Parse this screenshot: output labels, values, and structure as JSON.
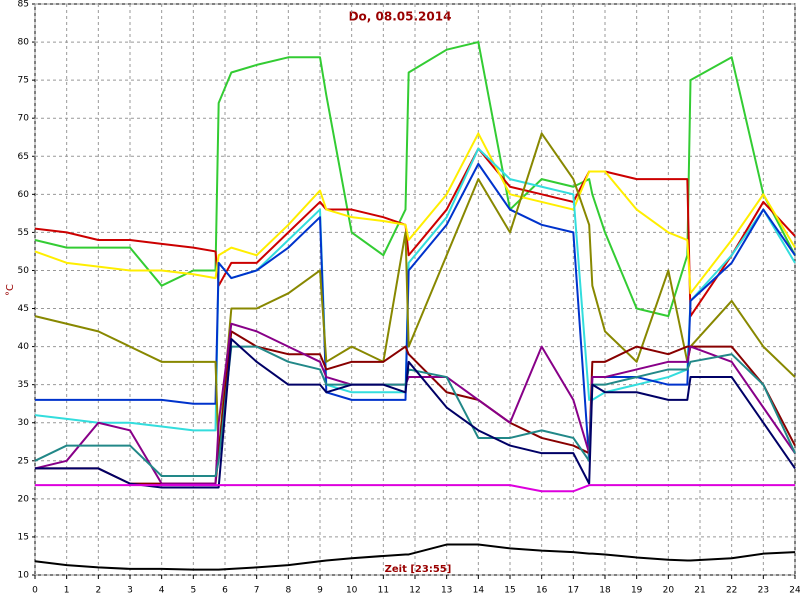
{
  "chart_data": {
    "type": "line",
    "title": "Do, 08.05.2014",
    "ylabel": "°C",
    "xlabel": "Zeit [23:55]",
    "x": [
      0,
      1,
      2,
      3,
      4,
      5,
      5.7,
      5.8,
      6.2,
      7,
      8,
      9,
      9.2,
      10,
      11,
      11.7,
      11.8,
      13,
      14,
      15,
      16,
      17,
      17.5,
      17.6,
      18,
      19,
      20,
      20.6,
      20.7,
      22,
      23,
      24
    ],
    "xlim": [
      0,
      24
    ],
    "xticks": [
      0,
      1,
      2,
      3,
      4,
      5,
      6,
      7,
      8,
      9,
      10,
      11,
      12,
      13,
      14,
      15,
      16,
      17,
      18,
      19,
      20,
      21,
      22,
      23,
      24
    ],
    "ylim": [
      10,
      85
    ],
    "yticks": [
      10,
      15,
      20,
      25,
      30,
      35,
      40,
      45,
      50,
      55,
      60,
      65,
      70,
      75,
      80,
      85
    ],
    "grid": true,
    "series": [
      {
        "color": "#33cc33",
        "values": [
          54,
          53,
          53,
          53,
          48,
          50,
          50,
          72,
          76,
          77,
          78,
          78,
          73,
          55,
          52,
          58,
          76,
          79,
          80,
          58,
          62,
          61,
          62,
          60,
          55,
          45,
          44,
          52,
          75,
          78,
          60,
          52
        ]
      },
      {
        "color": "#cc0000",
        "values": [
          55.5,
          55,
          54,
          54,
          53.5,
          53,
          52.5,
          48,
          51,
          51,
          55,
          59,
          58,
          58,
          57,
          56,
          52,
          58,
          66,
          61,
          60,
          59,
          63,
          63,
          63,
          62,
          62,
          62,
          44,
          52,
          59,
          54.5
        ]
      },
      {
        "color": "#ffee00",
        "values": [
          52.5,
          51,
          50.5,
          50,
          50,
          49.5,
          49,
          52,
          53,
          52,
          56,
          60.5,
          58,
          57,
          56.5,
          56,
          54,
          60,
          68,
          60,
          59,
          58,
          63,
          63,
          63,
          58,
          55,
          54,
          47,
          54,
          60,
          53
        ]
      },
      {
        "color": "#33dddd",
        "values": [
          31,
          30.5,
          30,
          30,
          29.5,
          29,
          29,
          51,
          49,
          50,
          54,
          58,
          35,
          34,
          34,
          34,
          51,
          57,
          66,
          62,
          61,
          60,
          33,
          33,
          34,
          35,
          36,
          37,
          46,
          52,
          58,
          51
        ]
      },
      {
        "color": "#0033cc",
        "values": [
          33,
          33,
          33,
          33,
          33,
          32.5,
          32.5,
          51,
          49,
          50,
          53,
          57,
          34,
          33,
          33,
          33,
          50,
          56,
          64,
          58,
          56,
          55,
          25,
          36,
          36,
          36,
          35,
          35,
          46,
          51,
          58,
          52
        ]
      },
      {
        "color": "#888800",
        "values": [
          44,
          43,
          42,
          40,
          38,
          38,
          38,
          26,
          45,
          45,
          47,
          50,
          38,
          40,
          38,
          55,
          40,
          52,
          62,
          55,
          68,
          62,
          56,
          48,
          42,
          38,
          50,
          38,
          40,
          46,
          40,
          36
        ]
      },
      {
        "color": "#880000",
        "values": [
          24,
          24,
          24,
          22,
          22,
          22,
          22,
          26,
          42,
          40,
          39,
          39,
          37,
          38,
          38,
          40,
          39,
          34,
          33,
          30,
          28,
          27,
          26,
          38,
          38,
          40,
          39,
          40,
          40,
          40,
          35,
          27
        ]
      },
      {
        "color": "#880088",
        "values": [
          24,
          25,
          30,
          29,
          22,
          22,
          22,
          30,
          43,
          42,
          40,
          38,
          36,
          35,
          35,
          35,
          36,
          36,
          33,
          30,
          40,
          33,
          26,
          36,
          36,
          37,
          38,
          38,
          40,
          38,
          32,
          26
        ]
      },
      {
        "color": "#228888",
        "values": [
          25,
          27,
          27,
          27,
          23,
          23,
          23,
          25,
          40,
          40,
          38,
          37,
          35,
          35,
          35,
          35,
          37,
          36,
          28,
          28,
          29,
          28,
          25,
          35,
          35,
          36,
          37,
          37,
          38,
          39,
          35,
          26
        ]
      },
      {
        "color": "#000066",
        "values": [
          24,
          24,
          24,
          22,
          21.5,
          21.5,
          21.5,
          21.5,
          41,
          38,
          35,
          35,
          34,
          35,
          35,
          34,
          38,
          32,
          29,
          27,
          26,
          26,
          22,
          35,
          34,
          34,
          33,
          33,
          36,
          36,
          30,
          24
        ]
      },
      {
        "color": "#dd00dd",
        "values": [
          21.8,
          21.8,
          21.8,
          21.8,
          21.8,
          21.8,
          21.8,
          21.8,
          21.8,
          21.8,
          21.8,
          21.8,
          21.8,
          21.8,
          21.8,
          21.8,
          21.8,
          21.8,
          21.8,
          21.8,
          21,
          21,
          21.8,
          21.8,
          21.8,
          21.8,
          21.8,
          21.8,
          21.8,
          21.8,
          21.8,
          21.8
        ]
      },
      {
        "color": "#000000",
        "values": [
          11.8,
          11.3,
          11,
          10.8,
          10.8,
          10.7,
          10.7,
          10.7,
          10.8,
          11,
          11.3,
          11.8,
          11.9,
          12.2,
          12.5,
          12.7,
          12.7,
          14,
          14,
          13.5,
          13.2,
          13,
          12.8,
          12.8,
          12.7,
          12.3,
          12,
          11.9,
          11.9,
          12.2,
          12.8,
          13
        ]
      }
    ]
  }
}
